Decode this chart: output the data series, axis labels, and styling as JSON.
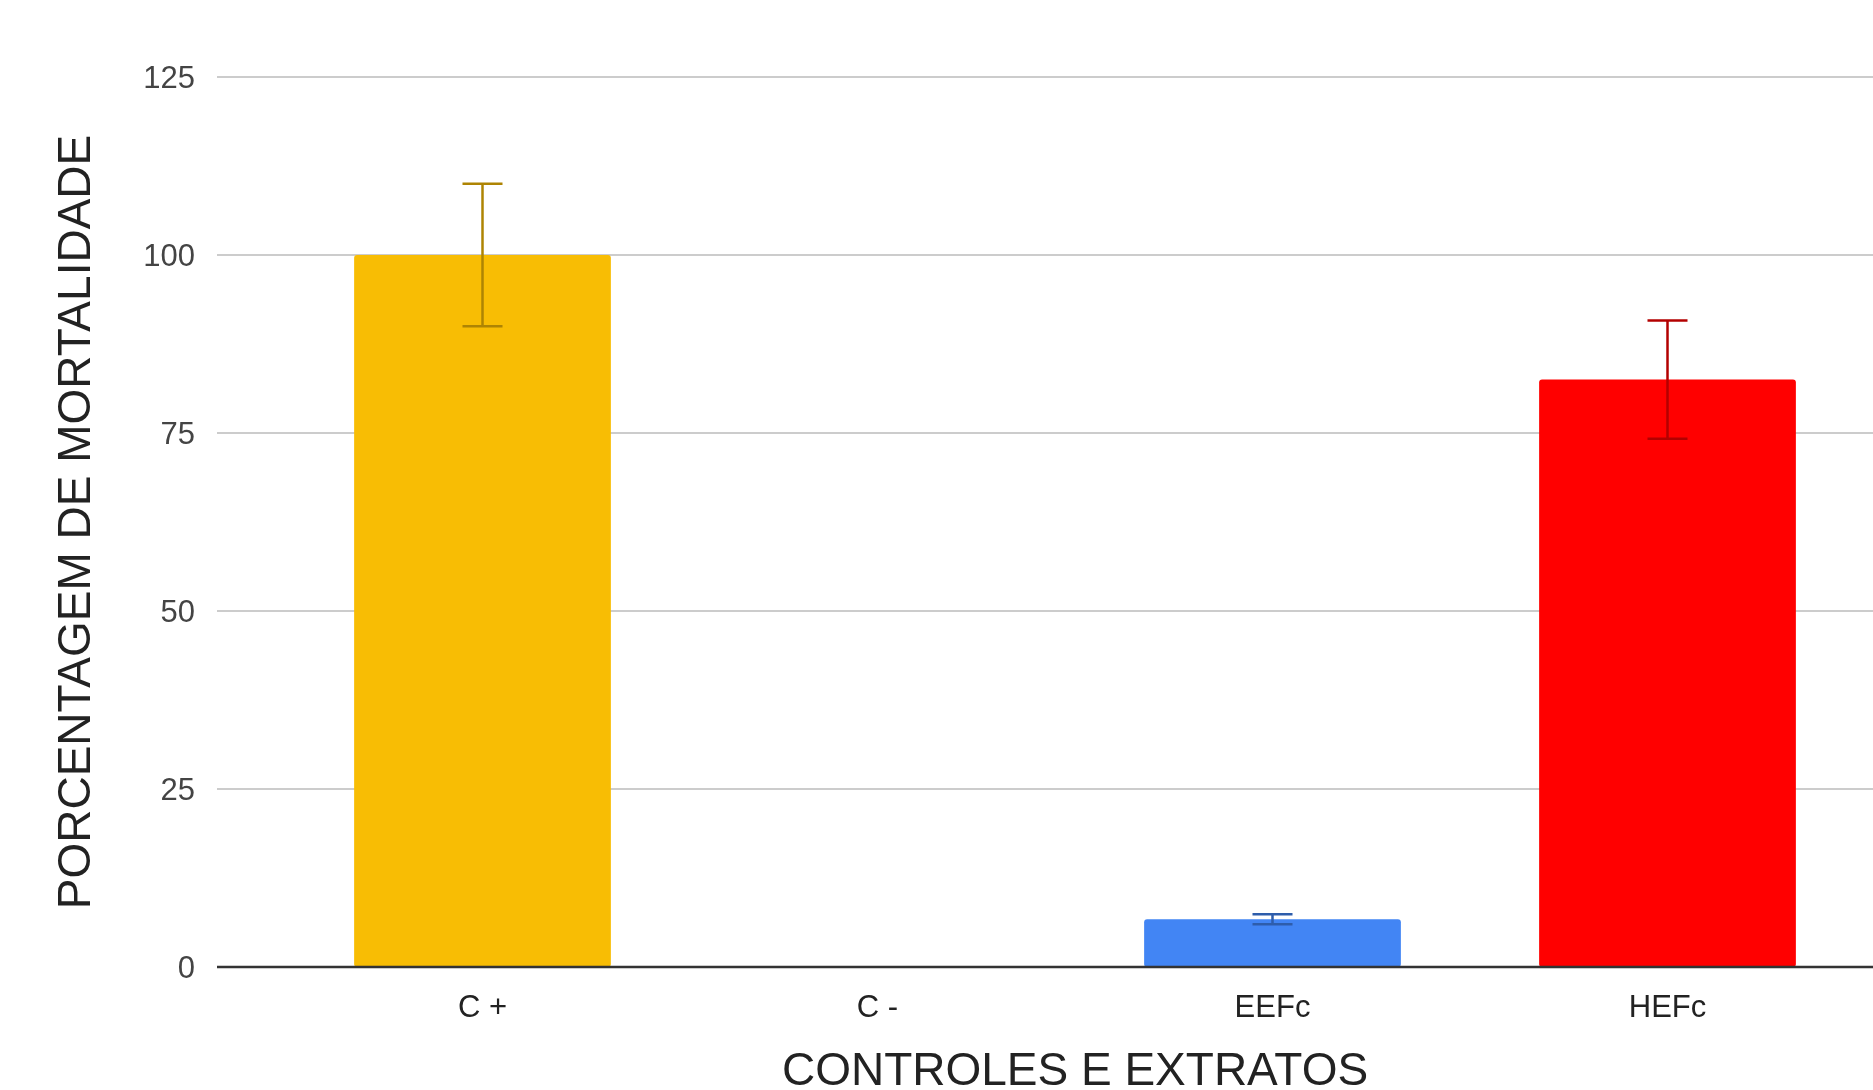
{
  "chart_data": {
    "type": "bar",
    "xlabel": "CONTROLES E EXTRATOS",
    "ylabel": "PORCENTAGEM DE MORTALIDADE",
    "categories": [
      "C +",
      "C -",
      "EEFc",
      "HEFc"
    ],
    "values": [
      100,
      0,
      6.7,
      82.5
    ],
    "errors": [
      10,
      null,
      0.7,
      8.3
    ],
    "colors": [
      "#f8bd04",
      "#34a853",
      "#4285f4",
      "#ff0000"
    ],
    "ylim": [
      0,
      125
    ],
    "yticks": [
      0,
      25,
      50,
      75,
      100,
      125
    ],
    "grid": "y"
  }
}
